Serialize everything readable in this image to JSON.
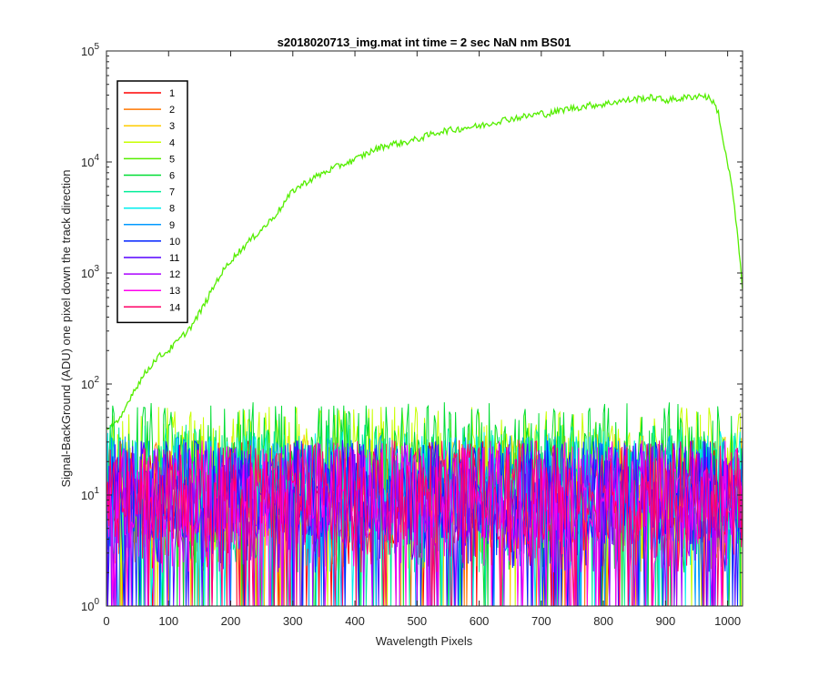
{
  "chart_data": {
    "type": "line",
    "title": "s2018020713_img.mat int time = 2 sec  NaN nm BS01",
    "xlabel": "Wavelength Pixels",
    "ylabel": "Signal-BackGround (ADU) one pixel down the track direction",
    "xlim": [
      0,
      1024
    ],
    "ylim": [
      1,
      100000
    ],
    "yscale": "log",
    "grid": false,
    "legend_location": "top-left",
    "x_ticks": [
      0,
      100,
      200,
      300,
      400,
      500,
      600,
      700,
      800,
      900,
      1000
    ],
    "x_tick_labels": [
      "0",
      "100",
      "200",
      "300",
      "400",
      "500",
      "600",
      "700",
      "800",
      "900",
      "1000"
    ],
    "y_ticks": [
      1,
      10,
      100,
      1000,
      10000,
      100000
    ],
    "y_tick_labels": [
      {
        "base": "10",
        "exp": "0"
      },
      {
        "base": "10",
        "exp": "1"
      },
      {
        "base": "10",
        "exp": "2"
      },
      {
        "base": "10",
        "exp": "3"
      },
      {
        "base": "10",
        "exp": "4"
      },
      {
        "base": "10",
        "exp": "5"
      }
    ],
    "series": [
      {
        "name": "1",
        "color": "#ff0000",
        "kind": "noise",
        "level": 10,
        "points": []
      },
      {
        "name": "2",
        "color": "#ff7700",
        "kind": "noise",
        "level": 10,
        "points": []
      },
      {
        "name": "3",
        "color": "#ffcc00",
        "kind": "noise",
        "level": 12,
        "points": []
      },
      {
        "name": "4",
        "color": "#c8ff00",
        "kind": "noise",
        "level": 20,
        "points": []
      },
      {
        "name": "5",
        "color": "#55ee00",
        "kind": "signal",
        "level": 30,
        "points": [
          [
            0,
            40
          ],
          [
            20,
            45
          ],
          [
            40,
            80
          ],
          [
            60,
            120
          ],
          [
            80,
            170
          ],
          [
            100,
            200
          ],
          [
            120,
            260
          ],
          [
            140,
            350
          ],
          [
            160,
            550
          ],
          [
            180,
            900
          ],
          [
            200,
            1300
          ],
          [
            220,
            1700
          ],
          [
            240,
            2200
          ],
          [
            260,
            2800
          ],
          [
            280,
            3800
          ],
          [
            300,
            5500
          ],
          [
            320,
            6500
          ],
          [
            340,
            7500
          ],
          [
            360,
            8500
          ],
          [
            380,
            9500
          ],
          [
            400,
            10500
          ],
          [
            420,
            12000
          ],
          [
            440,
            13500
          ],
          [
            460,
            14500
          ],
          [
            480,
            15000
          ],
          [
            500,
            16000
          ],
          [
            520,
            17500
          ],
          [
            540,
            19000
          ],
          [
            560,
            19500
          ],
          [
            580,
            20500
          ],
          [
            600,
            21000
          ],
          [
            620,
            22500
          ],
          [
            640,
            24000
          ],
          [
            660,
            25000
          ],
          [
            680,
            26000
          ],
          [
            700,
            27500
          ],
          [
            710,
            27000
          ],
          [
            720,
            28000
          ],
          [
            740,
            30000
          ],
          [
            760,
            31000
          ],
          [
            780,
            32500
          ],
          [
            800,
            33000
          ],
          [
            820,
            35000
          ],
          [
            840,
            36000
          ],
          [
            860,
            37500
          ],
          [
            880,
            38000
          ],
          [
            900,
            36000
          ],
          [
            920,
            37000
          ],
          [
            940,
            38500
          ],
          [
            960,
            40000
          ],
          [
            975,
            36000
          ],
          [
            985,
            28000
          ],
          [
            995,
            13000
          ],
          [
            1005,
            7000
          ],
          [
            1015,
            2500
          ],
          [
            1024,
            700
          ]
        ]
      },
      {
        "name": "6",
        "color": "#00dd33",
        "kind": "noise",
        "level": 22,
        "points": []
      },
      {
        "name": "7",
        "color": "#00ee99",
        "kind": "noise",
        "level": 14,
        "points": []
      },
      {
        "name": "8",
        "color": "#00eeee",
        "kind": "noise",
        "level": 12,
        "points": []
      },
      {
        "name": "9",
        "color": "#0099ff",
        "kind": "noise",
        "level": 11,
        "points": []
      },
      {
        "name": "10",
        "color": "#0022ff",
        "kind": "noise",
        "level": 10,
        "points": []
      },
      {
        "name": "11",
        "color": "#5500ff",
        "kind": "noise",
        "level": 10,
        "points": []
      },
      {
        "name": "12",
        "color": "#aa00ff",
        "kind": "noise",
        "level": 9,
        "points": []
      },
      {
        "name": "13",
        "color": "#ff00ee",
        "kind": "noise",
        "level": 10,
        "points": []
      },
      {
        "name": "14",
        "color": "#ff0066",
        "kind": "noise",
        "level": 10,
        "points": []
      }
    ]
  }
}
